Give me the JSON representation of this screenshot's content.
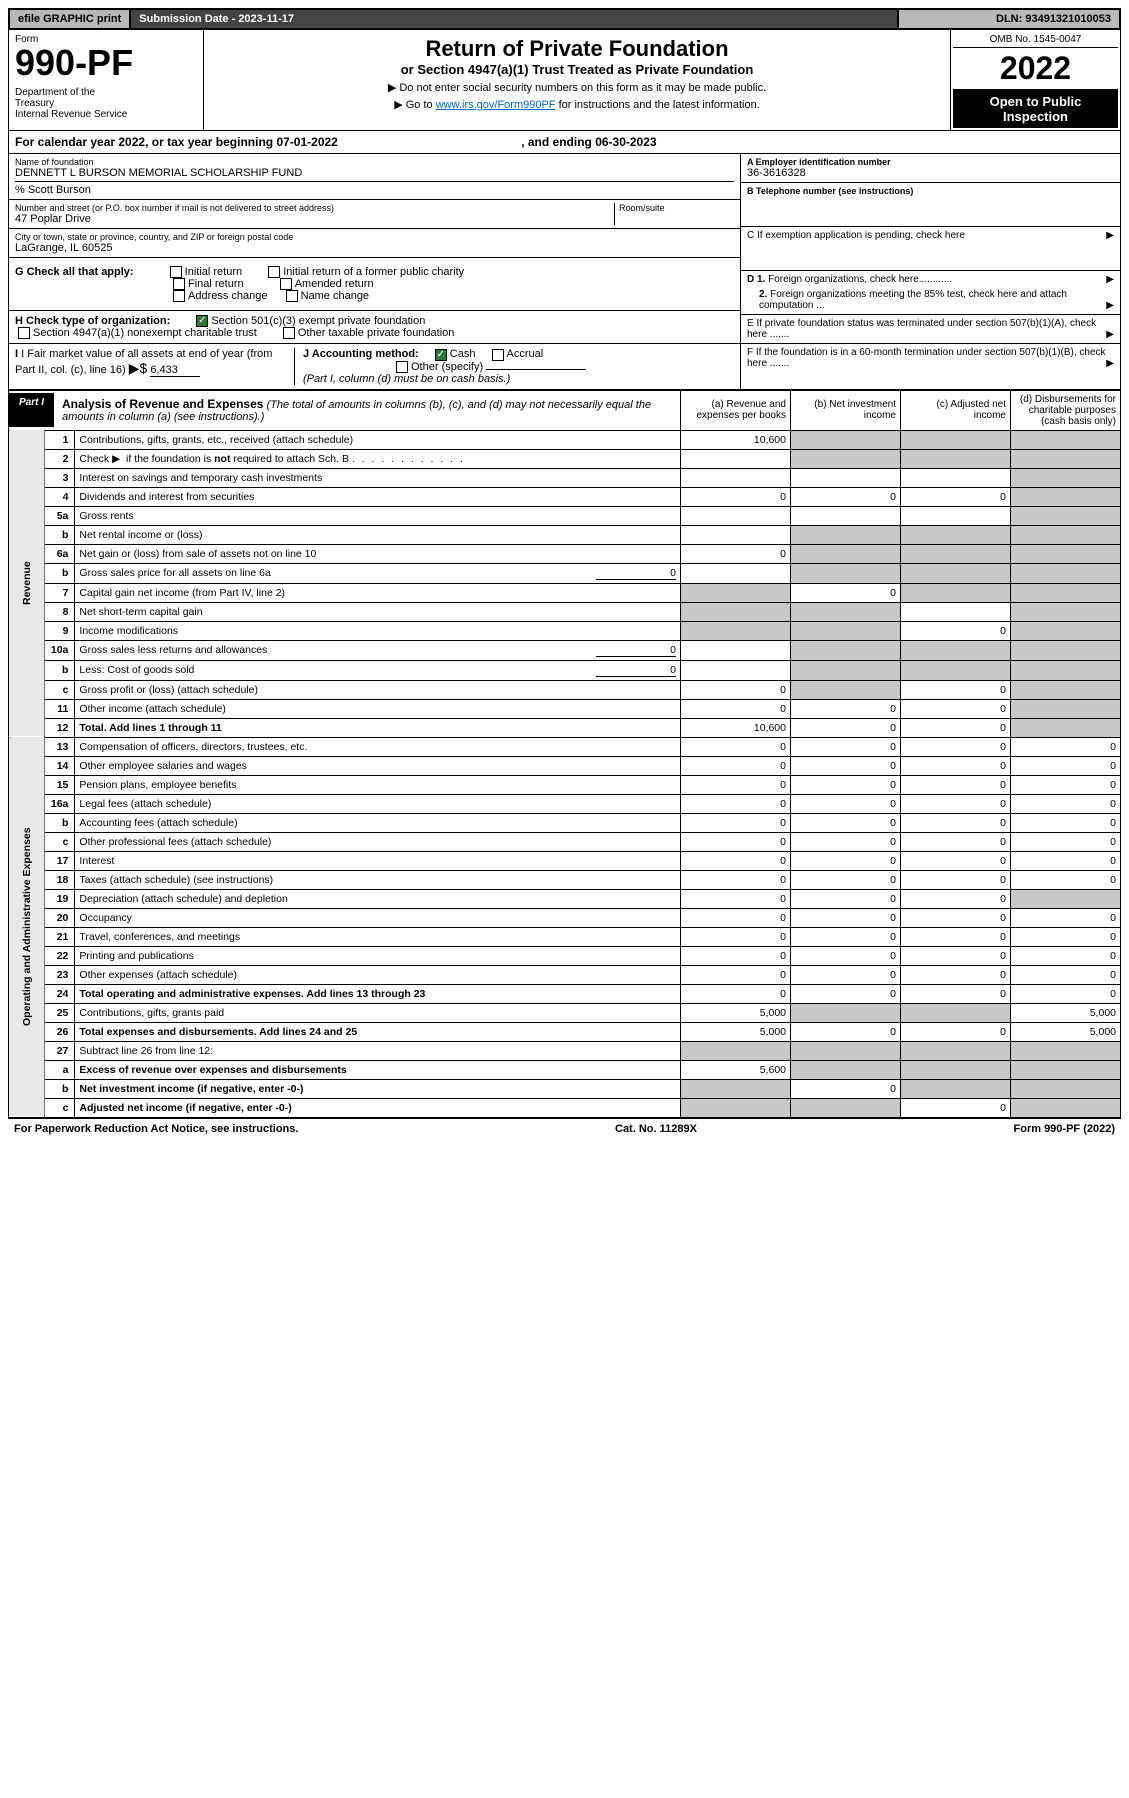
{
  "topbar": {
    "efile": "efile GRAPHIC print",
    "submission": "Submission Date - 2023-11-17",
    "dln": "DLN: 93491321010053"
  },
  "header": {
    "form_label": "Form",
    "form_num": "990-PF",
    "dept": "Department of the Treasury\nInternal Revenue Service",
    "title": "Return of Private Foundation",
    "subtitle": "or Section 4947(a)(1) Trust Treated as Private Foundation",
    "note1": "▶ Do not enter social security numbers on this form as it may be made public.",
    "note2": "▶ Go to www.irs.gov/Form990PF for instructions and the latest information.",
    "link_text": "www.irs.gov/Form990PF",
    "omb": "OMB No. 1545-0047",
    "year": "2022",
    "open": "Open to Public Inspection"
  },
  "cal_year": {
    "prefix": "For calendar year 2022, or tax year beginning ",
    "begin": "07-01-2022",
    "mid": ", and ending ",
    "end": "06-30-2023"
  },
  "info": {
    "name_lbl": "Name of foundation",
    "name": "DENNETT L BURSON MEMORIAL SCHOLARSHIP FUND",
    "care_of": "% Scott Burson",
    "addr_lbl": "Number and street (or P.O. box number if mail is not delivered to street address)",
    "addr": "47 Poplar Drive",
    "room_lbl": "Room/suite",
    "city_lbl": "City or town, state or province, country, and ZIP or foreign postal code",
    "city": "LaGrange, IL  60525",
    "ein_lbl": "A Employer identification number",
    "ein": "36-3616328",
    "phone_lbl": "B Telephone number (see instructions)",
    "c_lbl": "C If exemption application is pending, check here",
    "d1": "D 1. Foreign organizations, check here............",
    "d2": "2. Foreign organizations meeting the 85% test, check here and attach computation ...",
    "e_lbl": "E  If private foundation status was terminated under section 507(b)(1)(A), check here .......",
    "f_lbl": "F  If the foundation is in a 60-month termination under section 507(b)(1)(B), check here ......."
  },
  "g": {
    "label": "G Check all that apply:",
    "opts": [
      "Initial return",
      "Initial return of a former public charity",
      "Final return",
      "Amended return",
      "Address change",
      "Name change"
    ]
  },
  "h": {
    "label": "H Check type of organization:",
    "opt1": "Section 501(c)(3) exempt private foundation",
    "opt2": "Section 4947(a)(1) nonexempt charitable trust",
    "opt3": "Other taxable private foundation"
  },
  "i": {
    "label": "I Fair market value of all assets at end of year (from Part II, col. (c), line 16)",
    "arrow": "▶$",
    "value": "6,433"
  },
  "j": {
    "label": "J Accounting method:",
    "cash": "Cash",
    "accrual": "Accrual",
    "other": "Other (specify)",
    "note": "(Part I, column (d) must be on cash basis.)"
  },
  "part1": {
    "label": "Part I",
    "title": "Analysis of Revenue and Expenses",
    "title_note": "(The total of amounts in columns (b), (c), and (d) may not necessarily equal the amounts in column (a) (see instructions).)",
    "col_a": "(a)   Revenue and expenses per books",
    "col_b": "(b)   Net investment income",
    "col_c": "(c)   Adjusted net income",
    "col_d": "(d)   Disbursements for charitable purposes (cash basis only)"
  },
  "revenue_label": "Revenue",
  "expenses_label": "Operating and Administrative Expenses",
  "rows": [
    {
      "n": "1",
      "d": "Contributions, gifts, grants, etc., received (attach schedule)",
      "a": "10,600",
      "b": "",
      "c": "",
      "dd": "",
      "sa": false,
      "sb": true,
      "sc": true,
      "sd": true
    },
    {
      "n": "2",
      "d": "Check ▶ ☑ if the foundation is not required to attach Sch. B",
      "a": "",
      "b": "",
      "c": "",
      "dd": "",
      "sa": false,
      "sb": true,
      "sc": true,
      "sd": true,
      "checked": true
    },
    {
      "n": "3",
      "d": "Interest on savings and temporary cash investments",
      "a": "",
      "b": "",
      "c": "",
      "dd": "",
      "sa": false,
      "sb": false,
      "sc": false,
      "sd": true
    },
    {
      "n": "4",
      "d": "Dividends and interest from securities",
      "a": "0",
      "b": "0",
      "c": "0",
      "dd": "",
      "sa": false,
      "sb": false,
      "sc": false,
      "sd": true
    },
    {
      "n": "5a",
      "d": "Gross rents",
      "a": "",
      "b": "",
      "c": "",
      "dd": "",
      "sa": false,
      "sb": false,
      "sc": false,
      "sd": true
    },
    {
      "n": "b",
      "d": "Net rental income or (loss)",
      "a": "",
      "b": "",
      "c": "",
      "dd": "",
      "sa": false,
      "sb": true,
      "sc": true,
      "sd": true,
      "inline": true
    },
    {
      "n": "6a",
      "d": "Net gain or (loss) from sale of assets not on line 10",
      "a": "0",
      "b": "",
      "c": "",
      "dd": "",
      "sa": false,
      "sb": true,
      "sc": true,
      "sd": true
    },
    {
      "n": "b",
      "d": "Gross sales price for all assets on line 6a",
      "a": "",
      "b": "",
      "c": "",
      "dd": "",
      "sa": false,
      "sb": true,
      "sc": true,
      "sd": true,
      "inline": true,
      "iv": "0"
    },
    {
      "n": "7",
      "d": "Capital gain net income (from Part IV, line 2)",
      "a": "",
      "b": "0",
      "c": "",
      "dd": "",
      "sa": true,
      "sb": false,
      "sc": true,
      "sd": true
    },
    {
      "n": "8",
      "d": "Net short-term capital gain",
      "a": "",
      "b": "",
      "c": "",
      "dd": "",
      "sa": true,
      "sb": true,
      "sc": false,
      "sd": true
    },
    {
      "n": "9",
      "d": "Income modifications",
      "a": "",
      "b": "",
      "c": "0",
      "dd": "",
      "sa": true,
      "sb": true,
      "sc": false,
      "sd": true
    },
    {
      "n": "10a",
      "d": "Gross sales less returns and allowances",
      "a": "",
      "b": "",
      "c": "",
      "dd": "",
      "sa": false,
      "sb": true,
      "sc": true,
      "sd": true,
      "inline": true,
      "iv": "0"
    },
    {
      "n": "b",
      "d": "Less: Cost of goods sold",
      "a": "",
      "b": "",
      "c": "",
      "dd": "",
      "sa": false,
      "sb": true,
      "sc": true,
      "sd": true,
      "inline": true,
      "iv": "0"
    },
    {
      "n": "c",
      "d": "Gross profit or (loss) (attach schedule)",
      "a": "0",
      "b": "",
      "c": "0",
      "dd": "",
      "sa": false,
      "sb": true,
      "sc": false,
      "sd": true
    },
    {
      "n": "11",
      "d": "Other income (attach schedule)",
      "a": "0",
      "b": "0",
      "c": "0",
      "dd": "",
      "sa": false,
      "sb": false,
      "sc": false,
      "sd": true
    },
    {
      "n": "12",
      "d": "Total. Add lines 1 through 11",
      "a": "10,600",
      "b": "0",
      "c": "0",
      "dd": "",
      "sa": false,
      "sb": false,
      "sc": false,
      "sd": true,
      "bold": true
    }
  ],
  "exp_rows": [
    {
      "n": "13",
      "d": "Compensation of officers, directors, trustees, etc.",
      "a": "0",
      "b": "0",
      "c": "0",
      "dd": "0"
    },
    {
      "n": "14",
      "d": "Other employee salaries and wages",
      "a": "0",
      "b": "0",
      "c": "0",
      "dd": "0"
    },
    {
      "n": "15",
      "d": "Pension plans, employee benefits",
      "a": "0",
      "b": "0",
      "c": "0",
      "dd": "0"
    },
    {
      "n": "16a",
      "d": "Legal fees (attach schedule)",
      "a": "0",
      "b": "0",
      "c": "0",
      "dd": "0"
    },
    {
      "n": "b",
      "d": "Accounting fees (attach schedule)",
      "a": "0",
      "b": "0",
      "c": "0",
      "dd": "0"
    },
    {
      "n": "c",
      "d": "Other professional fees (attach schedule)",
      "a": "0",
      "b": "0",
      "c": "0",
      "dd": "0"
    },
    {
      "n": "17",
      "d": "Interest",
      "a": "0",
      "b": "0",
      "c": "0",
      "dd": "0"
    },
    {
      "n": "18",
      "d": "Taxes (attach schedule) (see instructions)",
      "a": "0",
      "b": "0",
      "c": "0",
      "dd": "0"
    },
    {
      "n": "19",
      "d": "Depreciation (attach schedule) and depletion",
      "a": "0",
      "b": "0",
      "c": "0",
      "dd": "",
      "sd": true
    },
    {
      "n": "20",
      "d": "Occupancy",
      "a": "0",
      "b": "0",
      "c": "0",
      "dd": "0"
    },
    {
      "n": "21",
      "d": "Travel, conferences, and meetings",
      "a": "0",
      "b": "0",
      "c": "0",
      "dd": "0"
    },
    {
      "n": "22",
      "d": "Printing and publications",
      "a": "0",
      "b": "0",
      "c": "0",
      "dd": "0"
    },
    {
      "n": "23",
      "d": "Other expenses (attach schedule)",
      "a": "0",
      "b": "0",
      "c": "0",
      "dd": "0"
    },
    {
      "n": "24",
      "d": "Total operating and administrative expenses. Add lines 13 through 23",
      "a": "0",
      "b": "0",
      "c": "0",
      "dd": "0",
      "bold": true
    },
    {
      "n": "25",
      "d": "Contributions, gifts, grants paid",
      "a": "5,000",
      "b": "",
      "c": "",
      "dd": "5,000",
      "sb": true,
      "sc": true
    },
    {
      "n": "26",
      "d": "Total expenses and disbursements. Add lines 24 and 25",
      "a": "5,000",
      "b": "0",
      "c": "0",
      "dd": "5,000",
      "bold": true
    },
    {
      "n": "27",
      "d": "Subtract line 26 from line 12:",
      "a": "",
      "b": "",
      "c": "",
      "dd": "",
      "sa": true,
      "sb": true,
      "sc": true,
      "sd": true
    },
    {
      "n": "a",
      "d": "Excess of revenue over expenses and disbursements",
      "a": "5,600",
      "b": "",
      "c": "",
      "dd": "",
      "sb": true,
      "sc": true,
      "sd": true,
      "bold": true
    },
    {
      "n": "b",
      "d": "Net investment income (if negative, enter -0-)",
      "a": "",
      "b": "0",
      "c": "",
      "dd": "",
      "sa": true,
      "sc": true,
      "sd": true,
      "bold": true
    },
    {
      "n": "c",
      "d": "Adjusted net income (if negative, enter -0-)",
      "a": "",
      "b": "",
      "c": "0",
      "dd": "",
      "sa": true,
      "sb": true,
      "sd": true,
      "bold": true
    }
  ],
  "footer": {
    "left": "For Paperwork Reduction Act Notice, see instructions.",
    "mid": "Cat. No. 11289X",
    "right": "Form 990-PF (2022)"
  }
}
